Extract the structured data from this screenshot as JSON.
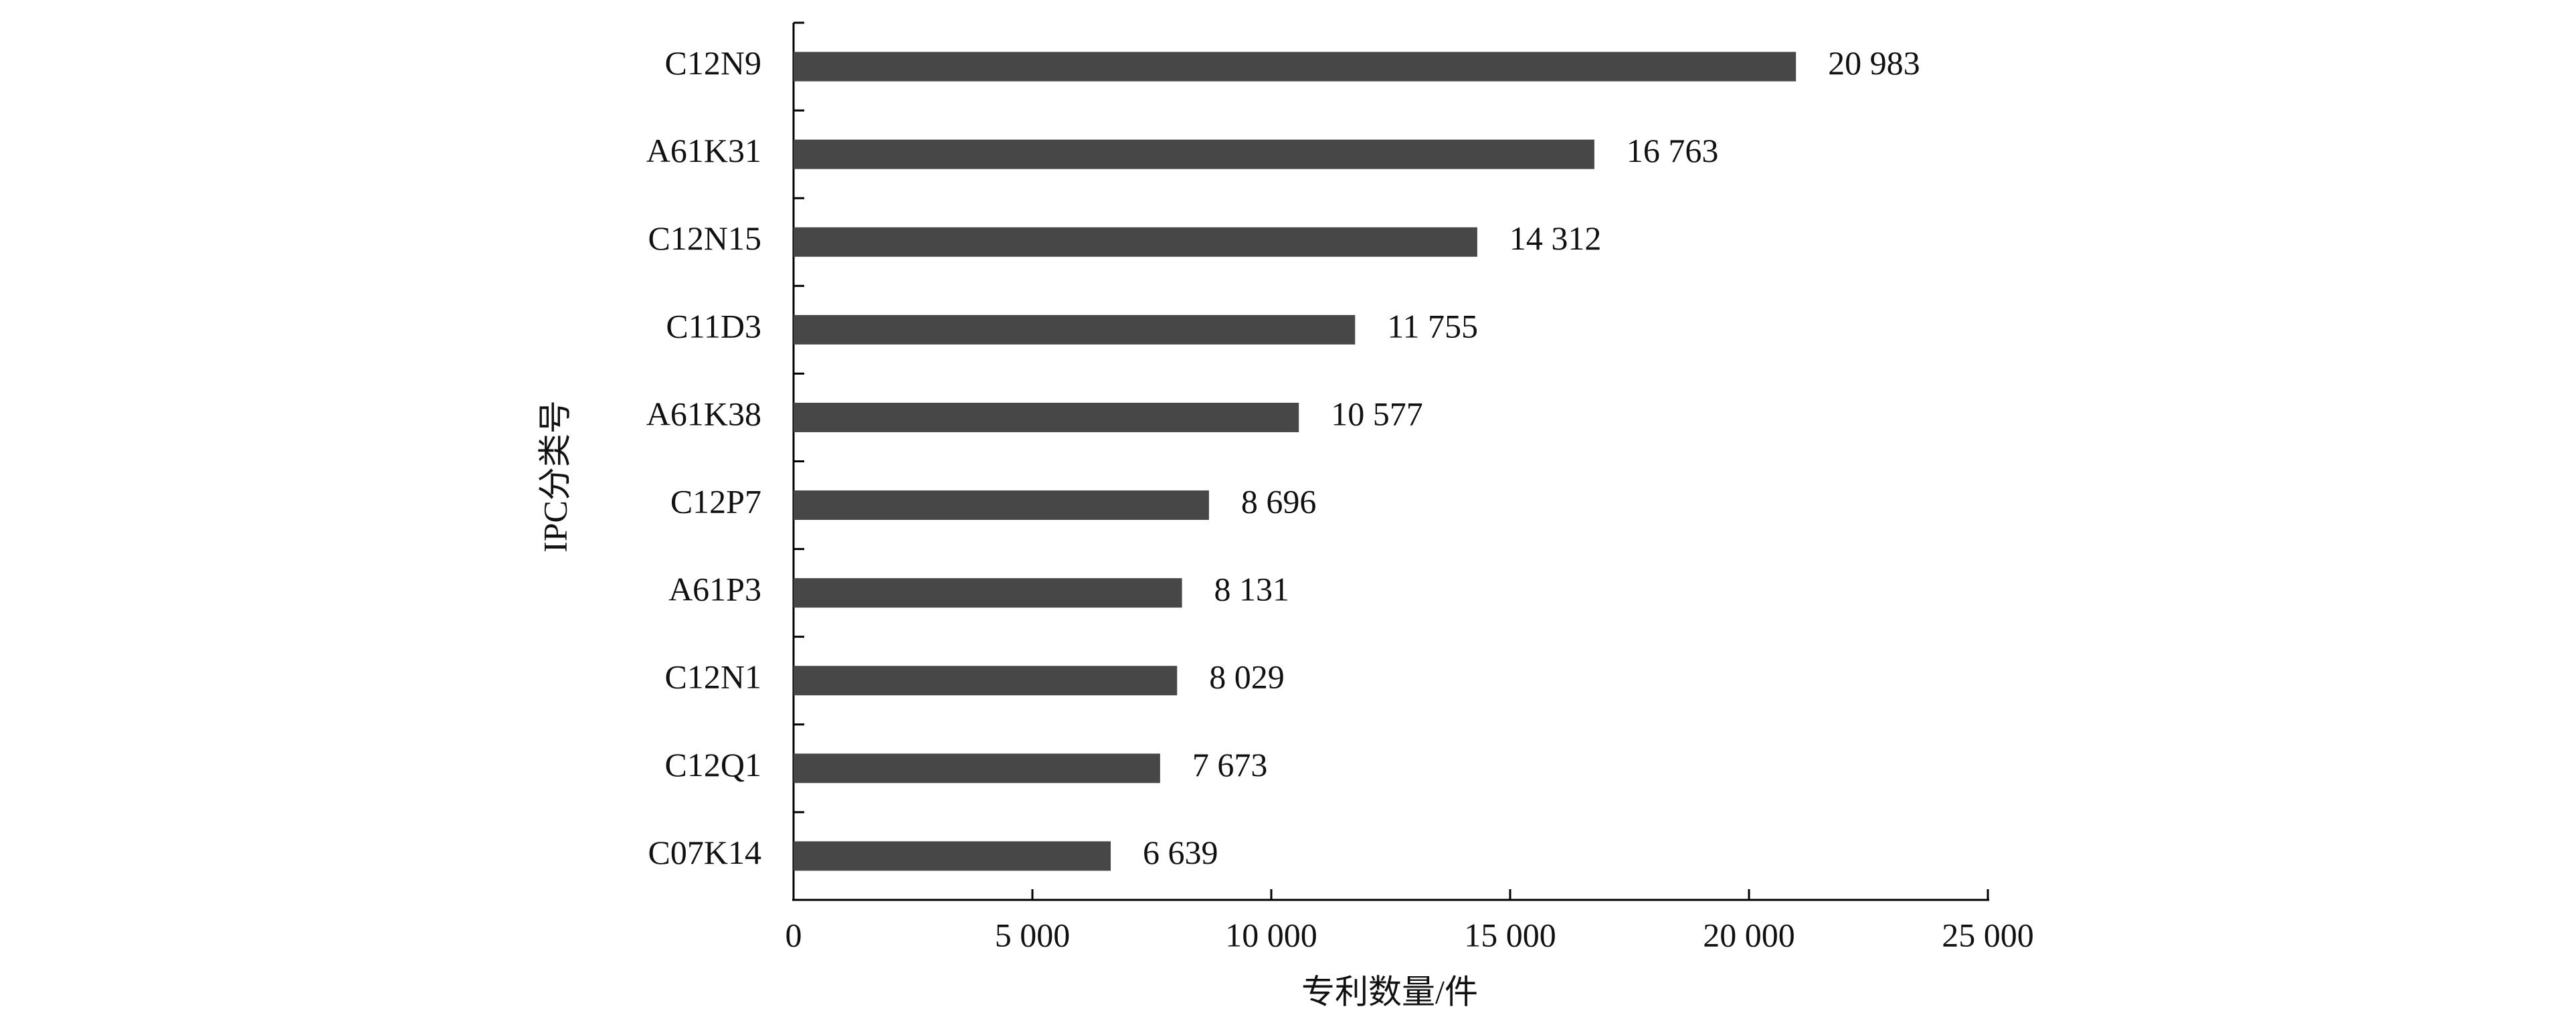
{
  "chart_data": {
    "type": "bar",
    "orientation": "horizontal",
    "x_label": "专利数量/件",
    "y_label": "IPC分类号",
    "categories": [
      "C12N9",
      "A61K31",
      "C12N15",
      "C11D3",
      "A61K38",
      "C12P7",
      "A61P3",
      "C12N1",
      "C12Q1",
      "C07K14"
    ],
    "values": [
      20983,
      16763,
      14312,
      11755,
      10577,
      8696,
      8131,
      8029,
      7673,
      6639
    ],
    "value_labels": [
      "20 983",
      "16 763",
      "14 312",
      "11 755",
      "10 577",
      "8 696",
      "8 131",
      "8 029",
      "7 673",
      "6 639"
    ],
    "color": "#474747",
    "xlim": [
      0,
      25000
    ],
    "xticks": [
      0,
      {
        "value": 5000,
        "label": "5 000"
      },
      {
        "value": 10000,
        "label": "10 000"
      },
      {
        "value": 15000,
        "label": "15 000"
      },
      {
        "value": 20000,
        "label": "20 000"
      },
      {
        "value": 25000,
        "label": "25 000"
      }
    ],
    "grid": false
  }
}
